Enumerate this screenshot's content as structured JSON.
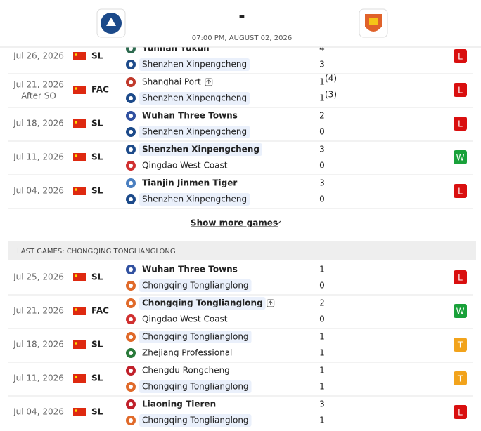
{
  "header": {
    "score": "-",
    "time": "07:00 PM, AUGUST 02, 2026"
  },
  "section1": {
    "matches": [
      {
        "date": "Jul 26, 2026",
        "competition": "SL",
        "team1": "Yunnan Yukun",
        "team2": "Shenzhen Xinpengcheng",
        "score1": 4,
        "score2": 3,
        "result": "L"
      },
      {
        "date": "Jul 21, 2026",
        "note": "After SO",
        "competition": "FAC",
        "team1": "Shanghai Port",
        "team2": "Shenzhen Xinpengcheng",
        "score1": 1,
        "score2": 1,
        "pen1": "(4)",
        "pen2": "(3)",
        "result": "L"
      },
      {
        "date": "Jul 18, 2026",
        "competition": "SL",
        "team1": "Wuhan Three Towns",
        "team2": "Shenzhen Xinpengcheng",
        "score1": 2,
        "score2": 0,
        "result": "L"
      },
      {
        "date": "Jul 11, 2026",
        "competition": "SL",
        "team1": "Shenzhen Xinpengcheng",
        "team2": "Qingdao West Coast",
        "score1": 3,
        "score2": 0,
        "result": "W"
      },
      {
        "date": "Jul 04, 2026",
        "competition": "SL",
        "team1": "Tianjin Jinmen Tiger",
        "team2": "Shenzhen Xinpengcheng",
        "score1": 3,
        "score2": 0,
        "result": "L"
      }
    ],
    "show_more": "Show more games"
  },
  "section2": {
    "heading": "LAST GAMES: CHONGQING TONGLIANGLONG",
    "matches": [
      {
        "date": "Jul 25, 2026",
        "competition": "SL",
        "team1": "Wuhan Three Towns",
        "team2": "Chongqing Tonglianglong",
        "score1": 1,
        "score2": 0,
        "result": "L"
      },
      {
        "date": "Jul 21, 2026",
        "competition": "FAC",
        "team1": "Chongqing Tonglianglong",
        "team2": "Qingdao West Coast",
        "score1": 2,
        "score2": 0,
        "result": "W"
      },
      {
        "date": "Jul 18, 2026",
        "competition": "SL",
        "team1": "Chongqing Tonglianglong",
        "team2": "Zhejiang Professional",
        "score1": 1,
        "score2": 1,
        "result": "T"
      },
      {
        "date": "Jul 11, 2026",
        "competition": "SL",
        "team1": "Chengdu Rongcheng",
        "team2": "Chongqing Tonglianglong",
        "score1": 1,
        "score2": 1,
        "result": "T"
      },
      {
        "date": "Jul 04, 2026",
        "competition": "SL",
        "team1": "Liaoning Tieren",
        "team2": "Chongqing Tonglianglong",
        "score1": 3,
        "score2": 1,
        "result": "L"
      }
    ]
  }
}
